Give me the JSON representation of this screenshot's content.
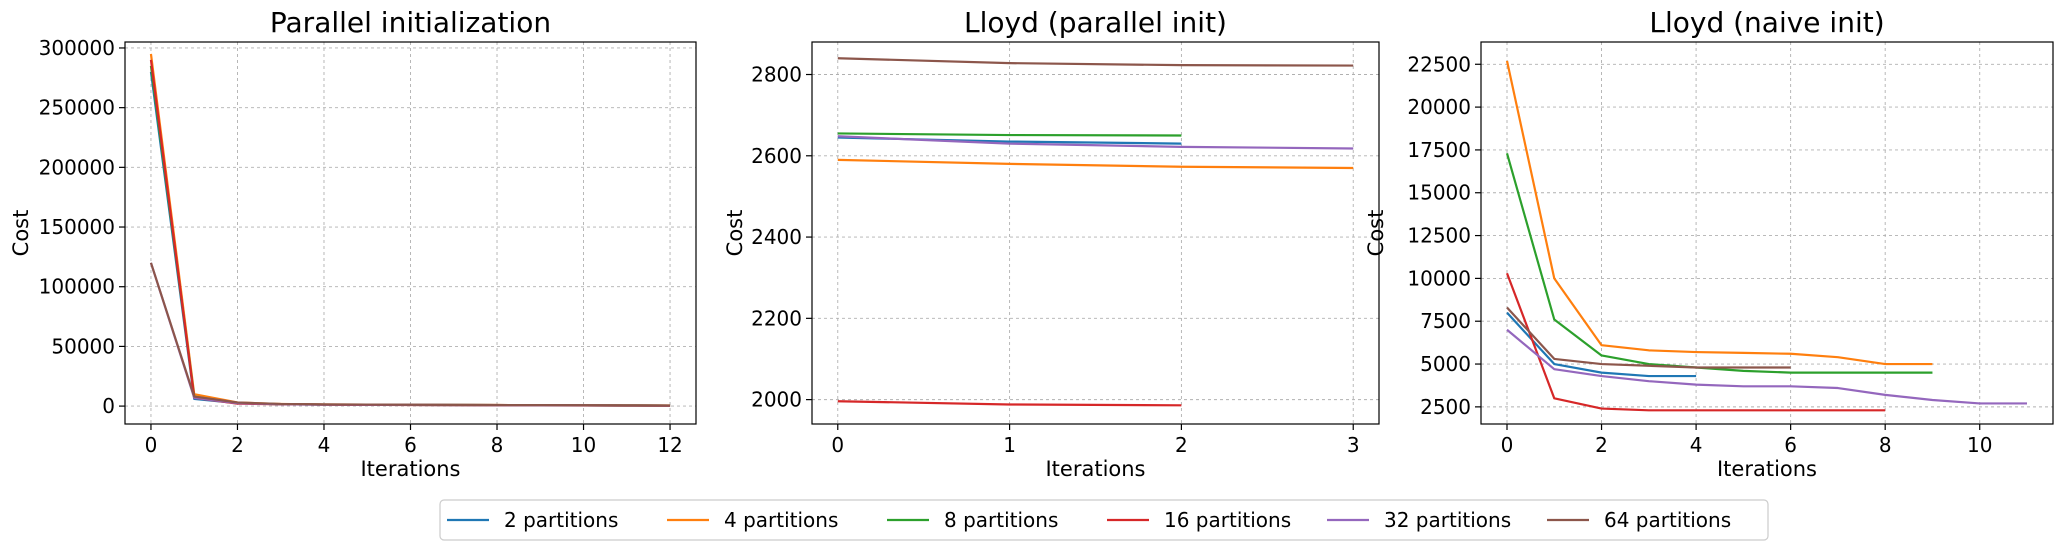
{
  "colors": {
    "2 partitions": "#1f77b4",
    "4 partitions": "#ff7f0e",
    "8 partitions": "#2ca02c",
    "16 partitions": "#d62728",
    "32 partitions": "#9467bd",
    "64 partitions": "#8c564b"
  },
  "legend": {
    "placement": "bottom-center",
    "entries": [
      "2 partitions",
      "4 partitions",
      "8 partitions",
      "16 partitions",
      "32 partitions",
      "64 partitions"
    ]
  },
  "chart_data": [
    {
      "type": "line",
      "title": "Parallel initialization",
      "xlabel": "Iterations",
      "ylabel": "Cost",
      "grid": true,
      "xlim": [
        -0.6,
        12.6
      ],
      "ylim": [
        -15000,
        305000
      ],
      "xticks": [
        0,
        2,
        4,
        6,
        8,
        10,
        12
      ],
      "xtick_labels": [
        "0",
        "2",
        "4",
        "6",
        "8",
        "10",
        "12"
      ],
      "yticks": [
        0,
        50000,
        100000,
        150000,
        200000,
        250000,
        300000
      ],
      "ytick_labels": [
        "0",
        "50000",
        "100000",
        "150000",
        "200000",
        "250000",
        "300000"
      ],
      "series": [
        {
          "name": "2 partitions",
          "x": [
            0,
            1,
            2,
            3,
            4,
            5,
            6,
            7,
            8,
            9,
            10,
            11,
            12
          ],
          "y": [
            280000,
            6000,
            2500,
            1500,
            1200,
            1100,
            1000,
            900,
            800,
            700,
            600,
            500,
            400
          ]
        },
        {
          "name": "4 partitions",
          "x": [
            0,
            1,
            2,
            3,
            4,
            5,
            6,
            7,
            8,
            9,
            10,
            11,
            12
          ],
          "y": [
            295000,
            10000,
            3000,
            1800,
            1400,
            1200,
            1100,
            1000,
            900,
            800,
            700,
            600,
            500
          ]
        },
        {
          "name": "8 partitions",
          "x": [
            0,
            1,
            2,
            3,
            4,
            5,
            6,
            7,
            8,
            9,
            10,
            11,
            12
          ],
          "y": [
            285000,
            8000,
            2500,
            1600,
            1300,
            1100,
            1000,
            900,
            800,
            700,
            600,
            500,
            400
          ]
        },
        {
          "name": "16 partitions",
          "x": [
            0,
            1,
            2,
            3,
            4,
            5,
            6,
            7,
            8,
            9,
            10,
            11,
            12
          ],
          "y": [
            290000,
            7000,
            2000,
            1500,
            1200,
            1000,
            900,
            800,
            700,
            600,
            500,
            400,
            300
          ]
        },
        {
          "name": "32 partitions",
          "x": [
            0,
            1,
            2,
            3,
            4,
            5,
            6,
            7,
            8,
            9,
            10,
            11,
            12
          ],
          "y": [
            120000,
            7000,
            2500,
            1600,
            1300,
            1100,
            1000,
            900,
            800,
            700,
            600,
            500,
            400
          ]
        },
        {
          "name": "64 partitions",
          "x": [
            0,
            1,
            2,
            3,
            4,
            5,
            6,
            7,
            8,
            9,
            10,
            11,
            12
          ],
          "y": [
            120000,
            8000,
            3000,
            1800,
            1500,
            1300,
            1100,
            1000,
            900,
            800,
            700,
            600,
            500
          ]
        }
      ]
    },
    {
      "type": "line",
      "title": "Lloyd (parallel init)",
      "xlabel": "Iterations",
      "ylabel": "Cost",
      "grid": true,
      "xlim": [
        -0.15,
        3.15
      ],
      "ylim": [
        1940,
        2880
      ],
      "xticks": [
        0,
        1,
        2,
        3
      ],
      "xtick_labels": [
        "0",
        "1",
        "2",
        "3"
      ],
      "yticks": [
        2000,
        2200,
        2400,
        2600,
        2800
      ],
      "ytick_labels": [
        "2000",
        "2200",
        "2400",
        "2600",
        "2800"
      ],
      "series": [
        {
          "name": "2 partitions",
          "x": [
            0,
            1,
            2
          ],
          "y": [
            2645,
            2635,
            2630
          ]
        },
        {
          "name": "4 partitions",
          "x": [
            0,
            1,
            2,
            3
          ],
          "y": [
            2590,
            2580,
            2573,
            2570
          ]
        },
        {
          "name": "8 partitions",
          "x": [
            0,
            1,
            2
          ],
          "y": [
            2655,
            2651,
            2650
          ]
        },
        {
          "name": "16 partitions",
          "x": [
            0,
            1,
            2
          ],
          "y": [
            1996,
            1988,
            1986
          ]
        },
        {
          "name": "32 partitions",
          "x": [
            0,
            1,
            2,
            3
          ],
          "y": [
            2648,
            2630,
            2622,
            2618
          ]
        },
        {
          "name": "64 partitions",
          "x": [
            0,
            1,
            2,
            3
          ],
          "y": [
            2840,
            2828,
            2823,
            2822
          ]
        }
      ]
    },
    {
      "type": "line",
      "title": "Lloyd (naive init)",
      "xlabel": "Iterations",
      "ylabel": "Cost",
      "grid": true,
      "xlim": [
        -0.55,
        11.55
      ],
      "ylim": [
        1500,
        23800
      ],
      "xticks": [
        0,
        2,
        4,
        6,
        8,
        10
      ],
      "xtick_labels": [
        "0",
        "2",
        "4",
        "6",
        "8",
        "10"
      ],
      "yticks": [
        2500,
        5000,
        7500,
        10000,
        12500,
        15000,
        17500,
        20000,
        22500
      ],
      "ytick_labels": [
        "2500",
        "5000",
        "7500",
        "10000",
        "12500",
        "15000",
        "17500",
        "20000",
        "22500"
      ],
      "series": [
        {
          "name": "2 partitions",
          "x": [
            0,
            1,
            2,
            3,
            4
          ],
          "y": [
            8000,
            5000,
            4500,
            4300,
            4300
          ]
        },
        {
          "name": "4 partitions",
          "x": [
            0,
            1,
            2,
            3,
            4,
            5,
            6,
            7,
            8,
            9
          ],
          "y": [
            22700,
            10000,
            6100,
            5800,
            5700,
            5650,
            5600,
            5400,
            5000,
            5000
          ]
        },
        {
          "name": "8 partitions",
          "x": [
            0,
            1,
            2,
            3,
            4,
            5,
            6,
            7,
            8,
            9
          ],
          "y": [
            17300,
            7600,
            5500,
            5000,
            4800,
            4600,
            4500,
            4500,
            4500,
            4500
          ]
        },
        {
          "name": "16 partitions",
          "x": [
            0,
            1,
            2,
            3,
            4,
            5,
            6,
            7,
            8
          ],
          "y": [
            10300,
            3000,
            2400,
            2300,
            2300,
            2300,
            2300,
            2300,
            2300
          ]
        },
        {
          "name": "32 partitions",
          "x": [
            0,
            1,
            2,
            3,
            4,
            5,
            6,
            7,
            8,
            9,
            10,
            11
          ],
          "y": [
            7000,
            4700,
            4300,
            4000,
            3800,
            3700,
            3700,
            3600,
            3200,
            2900,
            2700,
            2700
          ]
        },
        {
          "name": "64 partitions",
          "x": [
            0,
            1,
            2,
            3,
            4,
            5,
            6
          ],
          "y": [
            8300,
            5300,
            5000,
            4900,
            4800,
            4800,
            4800
          ]
        }
      ]
    }
  ]
}
